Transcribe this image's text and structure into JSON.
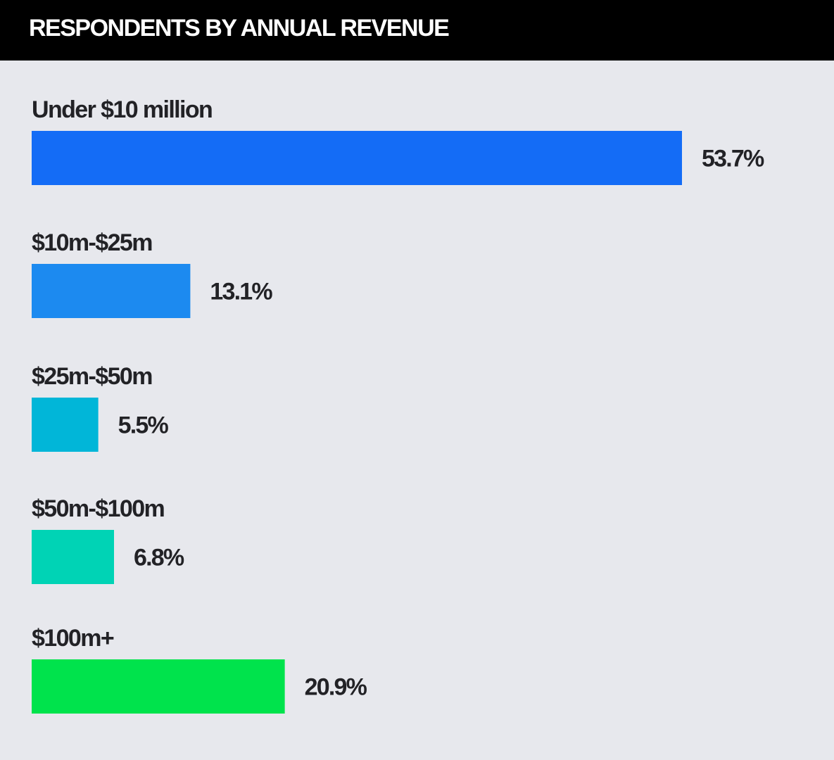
{
  "header": {
    "title": "RESPONDENTS BY ANNUAL REVENUE"
  },
  "colors": {
    "header_background": "#000000",
    "header_text": "#ffffff",
    "chart_background": "#e7e8ed",
    "label_text": "#222226"
  },
  "chart_data": {
    "type": "bar",
    "orientation": "horizontal",
    "title": "RESPONDENTS BY ANNUAL REVENUE",
    "xlabel": "",
    "ylabel": "",
    "unit": "%",
    "grid": false,
    "legend": "none",
    "categories": [
      "Under $10 million",
      "$10m-$25m",
      "$25m-$50m",
      "$50m-$100m",
      "$100m+"
    ],
    "values": [
      53.7,
      13.1,
      5.5,
      6.8,
      20.9
    ],
    "value_labels": [
      "53.7%",
      "13.1%",
      "5.5%",
      "6.8%",
      "20.9%"
    ],
    "bar_colors": [
      "#146cf6",
      "#1c8af0",
      "#01b6d8",
      "#00d3b5",
      "#00e34c"
    ],
    "xlim": [
      0,
      53.7
    ]
  }
}
